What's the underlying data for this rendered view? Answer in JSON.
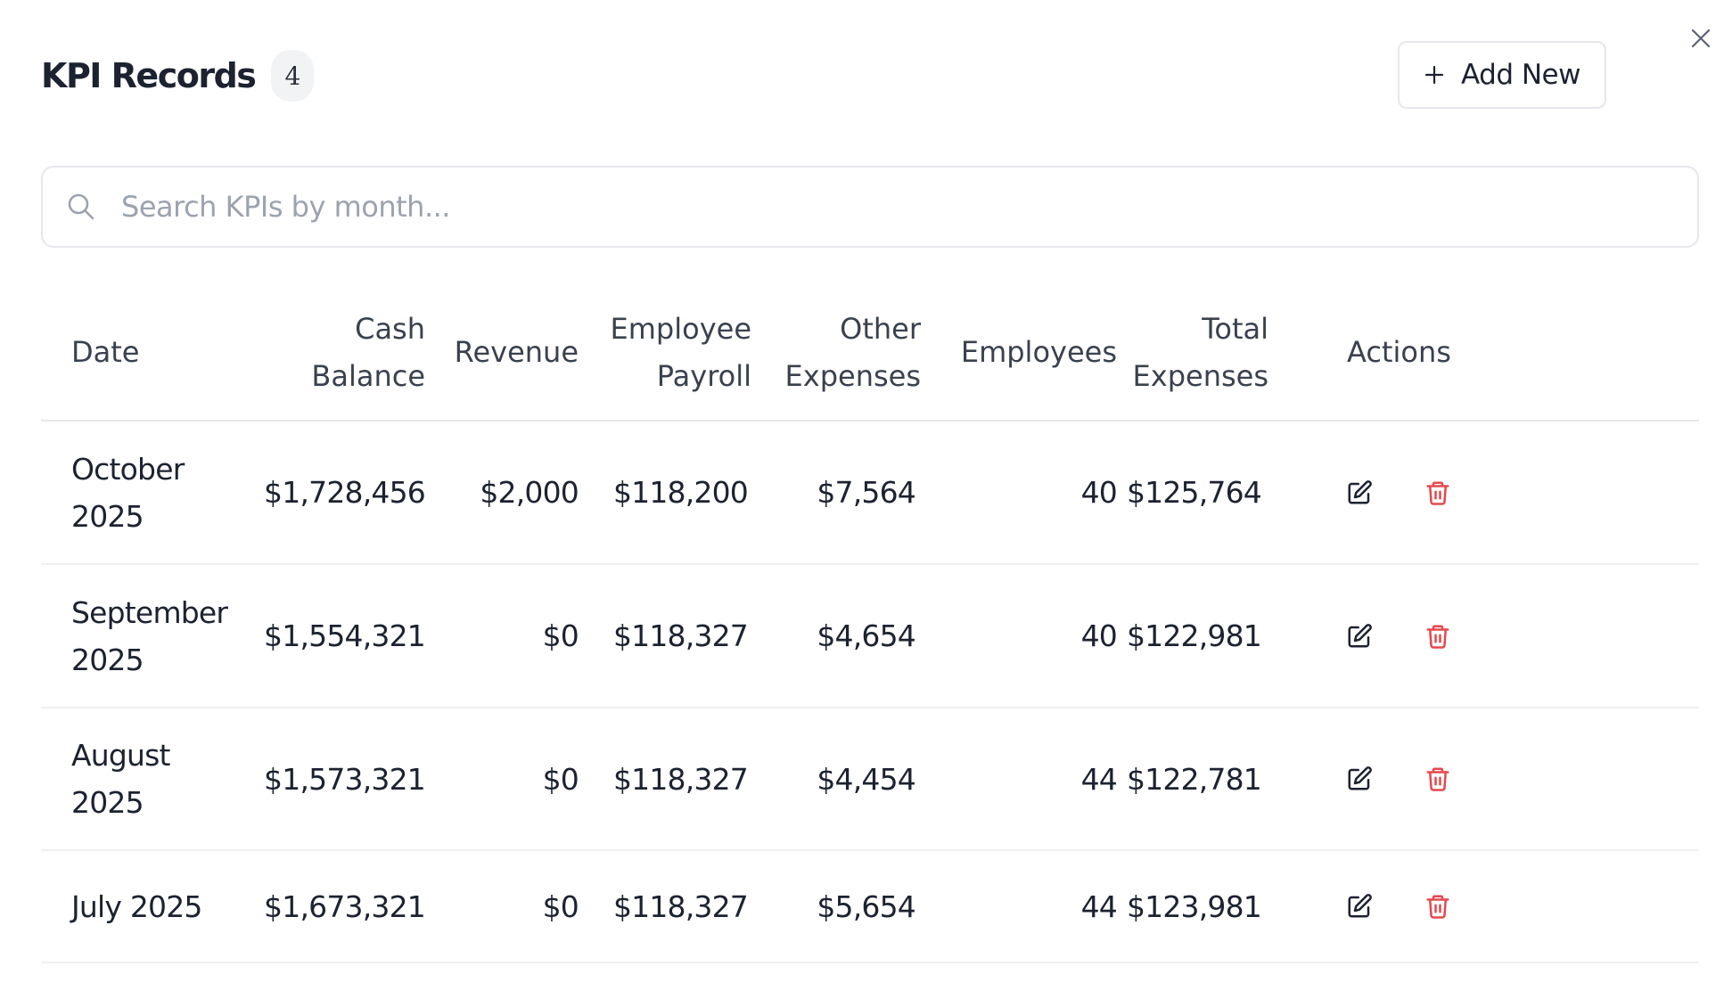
{
  "header": {
    "title": "KPI Records",
    "count": "4",
    "add_label": "Add New"
  },
  "search": {
    "placeholder": "Search KPIs by month...",
    "value": ""
  },
  "table": {
    "columns": [
      "Date",
      "Cash Balance",
      "Revenue",
      "Employee Payroll",
      "Other Expenses",
      "Employees",
      "Total Expenses",
      "Actions"
    ],
    "rows": [
      {
        "date": "October 2025",
        "cash": "$1,728,456",
        "revenue": "$2,000",
        "payroll": "$118,200",
        "other": "$7,564",
        "employees": "40",
        "total": "$125,764"
      },
      {
        "date": "September 2025",
        "cash": "$1,554,321",
        "revenue": "$0",
        "payroll": "$118,327",
        "other": "$4,654",
        "employees": "40",
        "total": "$122,981"
      },
      {
        "date": "August 2025",
        "cash": "$1,573,321",
        "revenue": "$0",
        "payroll": "$118,327",
        "other": "$4,454",
        "employees": "44",
        "total": "$122,781"
      },
      {
        "date": "July 2025",
        "cash": "$1,673,321",
        "revenue": "$0",
        "payroll": "$118,327",
        "other": "$5,654",
        "employees": "44",
        "total": "$123,981"
      }
    ]
  },
  "icons": {
    "close": "close-icon",
    "add": "plus-icon",
    "search": "search-icon",
    "edit": "edit-icon",
    "delete": "trash-icon"
  },
  "colors": {
    "text": "#1c2230",
    "muted": "#9ca3af",
    "border": "#e5e7eb",
    "delete": "#e5484d"
  }
}
